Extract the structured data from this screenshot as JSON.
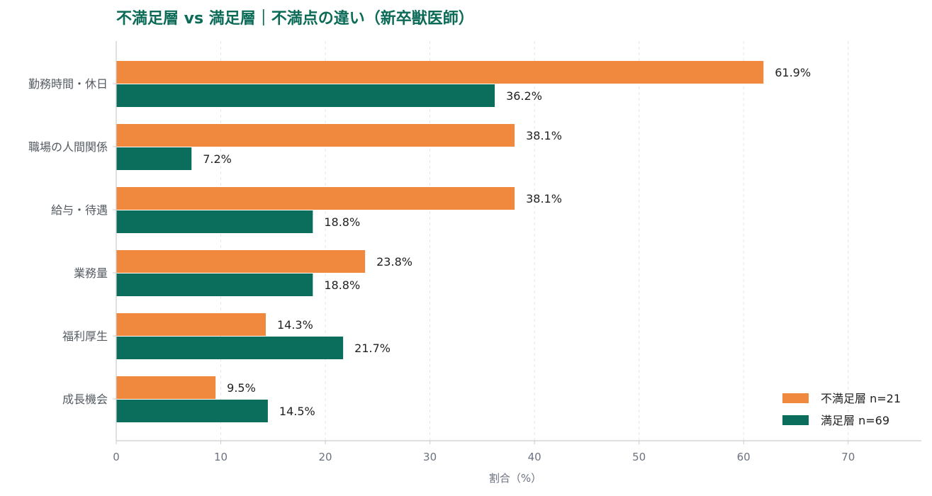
{
  "chart_data": {
    "type": "bar",
    "orientation": "horizontal",
    "title": "不満足層 vs 満足層｜不満点の違い（新卒獣医師）",
    "xlabel": "割合（%）",
    "ylabel": "",
    "xlim": [
      0,
      77
    ],
    "xticks": [
      0,
      10,
      20,
      30,
      40,
      50,
      60,
      70
    ],
    "grid": "vertical dashed",
    "legend_position": "bottom-right",
    "categories": [
      "勤務時間・休日",
      "職場の人間関係",
      "給与・待遇",
      "業務量",
      "福利厚生",
      "成長機会"
    ],
    "series": [
      {
        "name": "不満足層 n=21",
        "color": "#f0883e",
        "values": [
          61.9,
          38.1,
          38.1,
          23.8,
          14.3,
          9.5
        ],
        "labels": [
          "61.9%",
          "38.1%",
          "38.1%",
          "23.8%",
          "14.3%",
          "9.5%"
        ]
      },
      {
        "name": "満足層 n=69",
        "color": "#0b6e5c",
        "values": [
          36.2,
          7.2,
          18.8,
          18.8,
          21.7,
          14.5
        ],
        "labels": [
          "36.2%",
          "7.2%",
          "18.8%",
          "18.8%",
          "21.7%",
          "14.5%"
        ]
      }
    ],
    "colors": {
      "title": "#0b6b57",
      "axis": "#cccccc",
      "grid": "#e6e6e6"
    }
  }
}
